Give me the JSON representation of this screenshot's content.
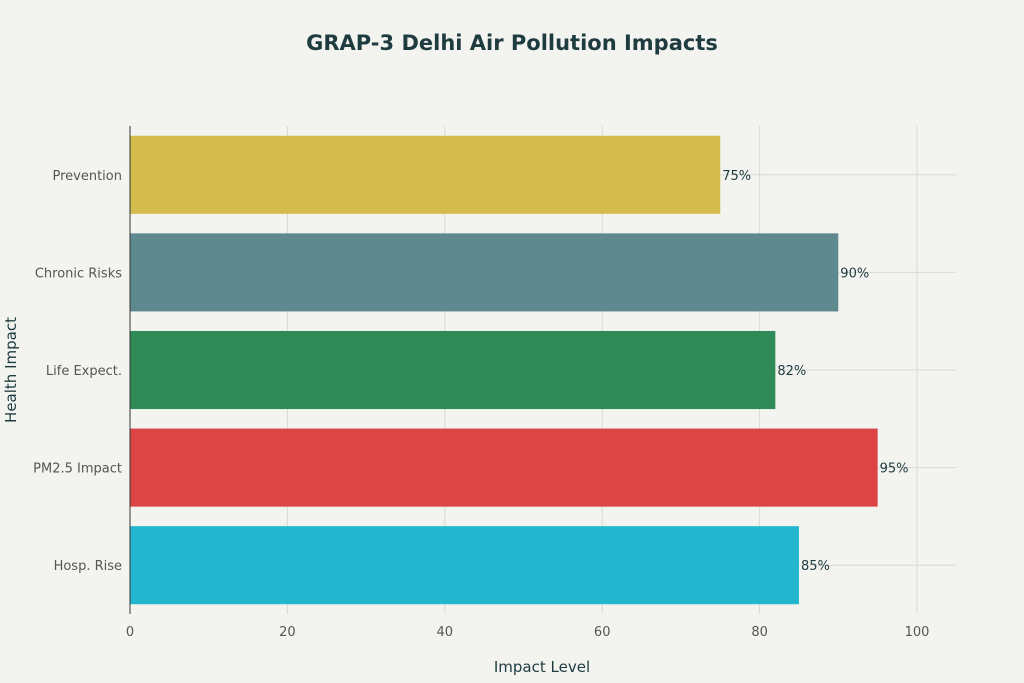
{
  "chart_data": {
    "type": "bar",
    "orientation": "horizontal",
    "title": "GRAP-3 Delhi Air Pollution Impacts",
    "xlabel": "Impact Level",
    "ylabel": "Health Impact",
    "categories": [
      "Prevention",
      "Chronic Risks",
      "Life Expect.",
      "PM2.5 Impact",
      "Hosp. Rise"
    ],
    "values": [
      75,
      90,
      82,
      95,
      85
    ],
    "data_labels": [
      "75%",
      "90%",
      "82%",
      "95%",
      "85%"
    ],
    "colors": [
      "#d3bb4d",
      "#5e8a8f",
      "#2e8b57",
      "#dc4546",
      "#22b7cf"
    ],
    "xlim": [
      0,
      105
    ],
    "xticks": [
      0,
      20,
      40,
      60,
      80,
      100
    ],
    "grid": true,
    "legend": "none"
  }
}
